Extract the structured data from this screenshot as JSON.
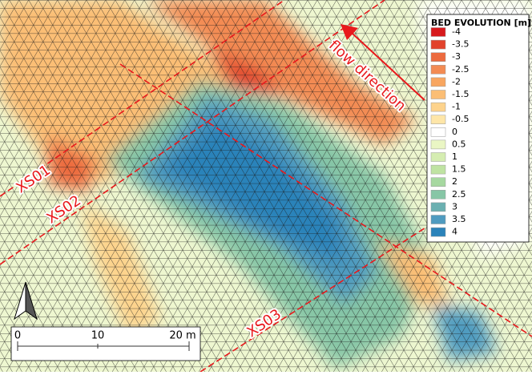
{
  "legend": {
    "title": "BED EVOLUTION [m]",
    "items": [
      {
        "label": "-4",
        "color": "#d7191c"
      },
      {
        "label": "-3.5",
        "color": "#e2422b"
      },
      {
        "label": "-3",
        "color": "#ec6a3e"
      },
      {
        "label": "-2.5",
        "color": "#f38b53"
      },
      {
        "label": "-2",
        "color": "#f8a660"
      },
      {
        "label": "-1.5",
        "color": "#fbbe75"
      },
      {
        "label": "-1",
        "color": "#fdd38c"
      },
      {
        "label": "-0.5",
        "color": "#fee6a8"
      },
      {
        "label": "0",
        "color": "#ffffff"
      },
      {
        "label": "0.5",
        "color": "#eaf6c4"
      },
      {
        "label": "1",
        "color": "#d5edb1"
      },
      {
        "label": "1.5",
        "color": "#bfe3a2"
      },
      {
        "label": "2",
        "color": "#a6d8a0"
      },
      {
        "label": "2.5",
        "color": "#87c6a6"
      },
      {
        "label": "3",
        "color": "#6bb0b1"
      },
      {
        "label": "3.5",
        "color": "#4f9bc0"
      },
      {
        "label": "4",
        "color": "#2b83ba"
      }
    ]
  },
  "annotations": {
    "xs01": "XS01",
    "xs02": "XS02",
    "xs03": "XS03",
    "flow": "flow direction"
  },
  "scale_bar": {
    "labels": [
      "0",
      "10",
      "20 m"
    ]
  }
}
